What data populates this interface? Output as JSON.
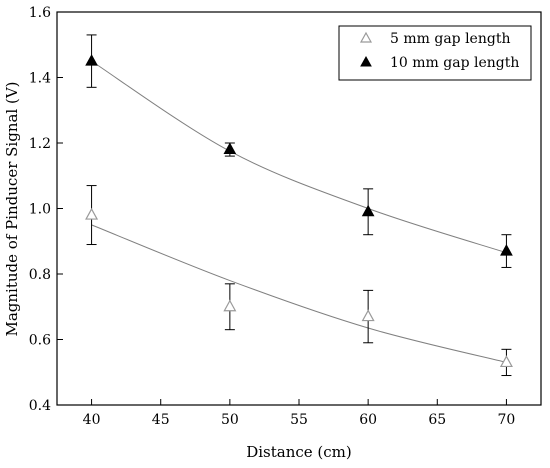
{
  "chart_data": {
    "type": "scatter",
    "title": "",
    "xlabel": "Distance (cm)",
    "ylabel": "Magnitude of Pinducer Signal (V)",
    "xlim": [
      37.5,
      72.5
    ],
    "ylim": [
      0.4,
      1.6
    ],
    "xticks": [
      40,
      45,
      50,
      55,
      60,
      65,
      70
    ],
    "xtick_labels": [
      "40",
      "45",
      "50",
      "55",
      "60",
      "65",
      "70"
    ],
    "yticks": [
      0.4,
      0.6,
      0.8,
      1.0,
      1.2,
      1.4,
      1.6
    ],
    "ytick_labels": [
      "0.4",
      "0.6",
      "0.8",
      "1.0",
      "1.2",
      "1.4",
      "1.6"
    ],
    "grid": false,
    "legend_position": "top-right",
    "series": [
      {
        "name": "5 mm gap length",
        "marker": "open-triangle",
        "color": "#9a9a9a",
        "x": [
          40,
          50,
          60,
          70
        ],
        "y": [
          0.98,
          0.7,
          0.67,
          0.53
        ],
        "error": [
          0.09,
          0.07,
          0.08,
          0.04
        ],
        "fit": [
          0.95,
          0.78,
          0.635,
          0.53
        ]
      },
      {
        "name": "10 mm gap length",
        "marker": "filled-triangle",
        "color": "#000000",
        "x": [
          40,
          50,
          60,
          70
        ],
        "y": [
          1.45,
          1.18,
          0.99,
          0.87
        ],
        "error": [
          0.08,
          0.02,
          0.07,
          0.05
        ],
        "fit": [
          1.45,
          1.175,
          1.0,
          0.865
        ]
      }
    ]
  }
}
